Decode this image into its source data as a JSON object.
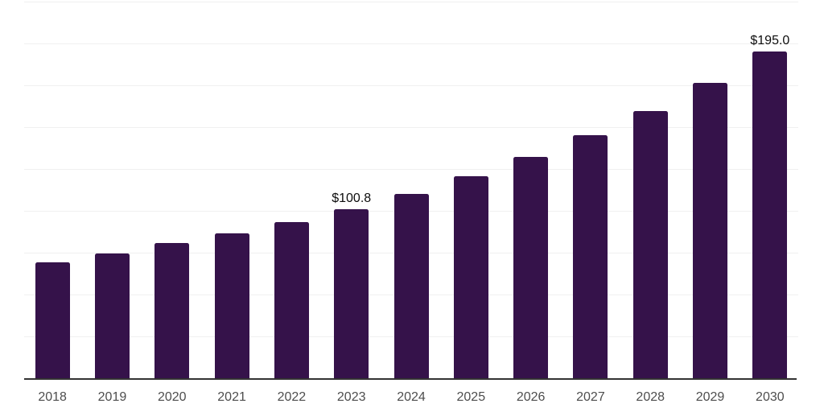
{
  "chart_data": {
    "type": "bar",
    "title": "",
    "xlabel": "",
    "ylabel": "",
    "categories": [
      "2018",
      "2019",
      "2020",
      "2021",
      "2022",
      "2023",
      "2024",
      "2025",
      "2026",
      "2027",
      "2028",
      "2029",
      "2030"
    ],
    "values": [
      69.1,
      74.4,
      80.6,
      86.5,
      93.5,
      100.8,
      110.0,
      120.5,
      132.0,
      145.0,
      159.5,
      176.5,
      195.0
    ],
    "data_labels": {
      "2023": "$100.8",
      "2030": "$195.0"
    },
    "value_prefix": "$",
    "ylim": [
      0,
      225
    ],
    "gridline_step": 25,
    "grid": true,
    "legend": false,
    "colors": {
      "bar": "#35124a",
      "gridline": "#f0f0f0",
      "axis_line": "#333333",
      "tick_label": "#4d4d4d",
      "value_label": "#0d0d0d",
      "background": "#ffffff"
    }
  }
}
